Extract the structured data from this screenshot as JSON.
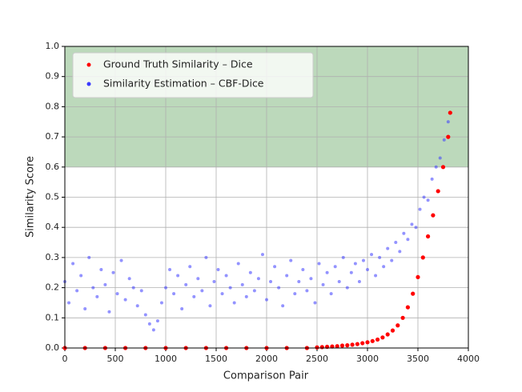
{
  "chart_data": {
    "type": "scatter",
    "xlabel": "Comparison Pair",
    "ylabel": "Similarity Score",
    "xlim": [
      0,
      4000
    ],
    "xticks": [
      0,
      500,
      1000,
      1500,
      2000,
      2500,
      3000,
      3500,
      4000
    ],
    "ylim": [
      0,
      1
    ],
    "yticks": [
      {
        "value": 0,
        "label": "0.0"
      },
      0.1,
      0.2,
      0.3,
      0.4,
      0.5,
      0.6,
      0.7,
      0.8,
      0.9,
      {
        "value": 1,
        "label": "1.0"
      }
    ],
    "grid": true,
    "legend": "upper left",
    "shaded_band": {
      "ylim": [
        0.6,
        1
      ],
      "color": "#bcd9bb"
    },
    "series": [
      {
        "name": "Similarity Estimation – CBF-Dice",
        "color": "#3a3aff",
        "x": [
          0,
          40,
          80,
          120,
          160,
          200,
          240,
          280,
          320,
          360,
          400,
          440,
          480,
          520,
          560,
          600,
          640,
          680,
          720,
          760,
          800,
          840,
          880,
          920,
          960,
          1000,
          1040,
          1080,
          1120,
          1160,
          1200,
          1240,
          1280,
          1320,
          1360,
          1400,
          1440,
          1480,
          1520,
          1560,
          1600,
          1640,
          1680,
          1720,
          1760,
          1800,
          1840,
          1880,
          1920,
          1960,
          2000,
          2040,
          2080,
          2120,
          2160,
          2200,
          2240,
          2280,
          2320,
          2360,
          2400,
          2440,
          2480,
          2520,
          2560,
          2600,
          2640,
          2680,
          2720,
          2760,
          2800,
          2840,
          2880,
          2920,
          2960,
          3000,
          3040,
          3080,
          3120,
          3160,
          3200,
          3240,
          3280,
          3320,
          3360,
          3400,
          3440,
          3480,
          3520,
          3560,
          3600,
          3640,
          3680,
          3720,
          3760,
          3800
        ],
        "values": [
          0.22,
          0.15,
          0.28,
          0.19,
          0.24,
          0.13,
          0.3,
          0.2,
          0.17,
          0.26,
          0.21,
          0.12,
          0.25,
          0.18,
          0.29,
          0.16,
          0.23,
          0.2,
          0.14,
          0.19,
          0.11,
          0.08,
          0.06,
          0.09,
          0.15,
          0.2,
          0.26,
          0.18,
          0.24,
          0.13,
          0.21,
          0.27,
          0.17,
          0.23,
          0.19,
          0.3,
          0.14,
          0.22,
          0.26,
          0.18,
          0.24,
          0.2,
          0.15,
          0.28,
          0.21,
          0.17,
          0.25,
          0.19,
          0.23,
          0.31,
          0.16,
          0.22,
          0.27,
          0.2,
          0.14,
          0.24,
          0.29,
          0.18,
          0.22,
          0.26,
          0.19,
          0.23,
          0.15,
          0.28,
          0.21,
          0.25,
          0.18,
          0.27,
          0.22,
          0.3,
          0.2,
          0.25,
          0.28,
          0.22,
          0.29,
          0.26,
          0.31,
          0.24,
          0.3,
          0.27,
          0.33,
          0.29,
          0.35,
          0.32,
          0.38,
          0.36,
          0.41,
          0.4,
          0.46,
          0.5,
          0.49,
          0.56,
          0.6,
          0.63,
          0.69,
          0.75
        ]
      },
      {
        "name": "Ground Truth Similarity – Dice",
        "color": "#ff0000",
        "x": [
          0,
          200,
          400,
          600,
          800,
          1000,
          1200,
          1400,
          1600,
          1800,
          2000,
          2200,
          2400,
          2500,
          2550,
          2600,
          2650,
          2700,
          2750,
          2800,
          2850,
          2900,
          2950,
          3000,
          3050,
          3100,
          3150,
          3200,
          3250,
          3300,
          3350,
          3400,
          3450,
          3500,
          3550,
          3600,
          3650,
          3700,
          3750,
          3800,
          3820
        ],
        "values": [
          0,
          0,
          0,
          0,
          0,
          0,
          0,
          0,
          0,
          0,
          0,
          0,
          0,
          0.002,
          0.003,
          0.004,
          0.005,
          0.006,
          0.008,
          0.009,
          0.011,
          0.013,
          0.016,
          0.019,
          0.023,
          0.028,
          0.035,
          0.045,
          0.058,
          0.075,
          0.1,
          0.135,
          0.18,
          0.235,
          0.3,
          0.37,
          0.44,
          0.52,
          0.6,
          0.7,
          0.78
        ]
      }
    ]
  }
}
